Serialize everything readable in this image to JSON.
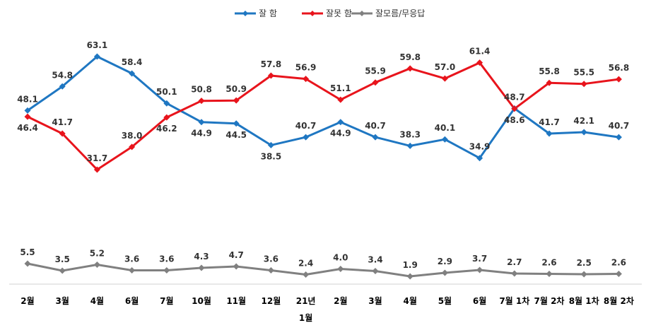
{
  "chart_data": {
    "type": "line",
    "categories": [
      "2월",
      "3월",
      "4월",
      "6월",
      "7월",
      "10월",
      "11월",
      "12월",
      "21년 1월",
      "2월",
      "3월",
      "4월",
      "5월",
      "6월",
      "7월 1차",
      "7월 2차",
      "8월 1차",
      "8월 2차"
    ],
    "series": [
      {
        "name": "잘 함",
        "color": "#1f77c2",
        "values": [
          48.1,
          54.8,
          63.1,
          58.4,
          50.1,
          44.9,
          44.5,
          38.5,
          40.7,
          44.9,
          40.7,
          38.3,
          40.1,
          34.9,
          48.7,
          41.7,
          42.1,
          40.7
        ]
      },
      {
        "name": "잘못 함",
        "color": "#e8141c",
        "values": [
          46.4,
          41.7,
          31.7,
          38.0,
          46.2,
          50.8,
          50.9,
          57.8,
          56.9,
          51.1,
          55.9,
          59.8,
          57.0,
          61.4,
          48.6,
          55.8,
          55.5,
          56.8
        ]
      },
      {
        "name": "잘모름/무응답",
        "color": "#808080",
        "values": [
          5.5,
          3.5,
          5.2,
          3.6,
          3.6,
          4.3,
          4.7,
          3.6,
          2.4,
          4.0,
          3.4,
          1.9,
          2.9,
          3.7,
          2.7,
          2.6,
          2.5,
          2.6
        ]
      }
    ],
    "legend_position": "top-center",
    "grid": false
  }
}
